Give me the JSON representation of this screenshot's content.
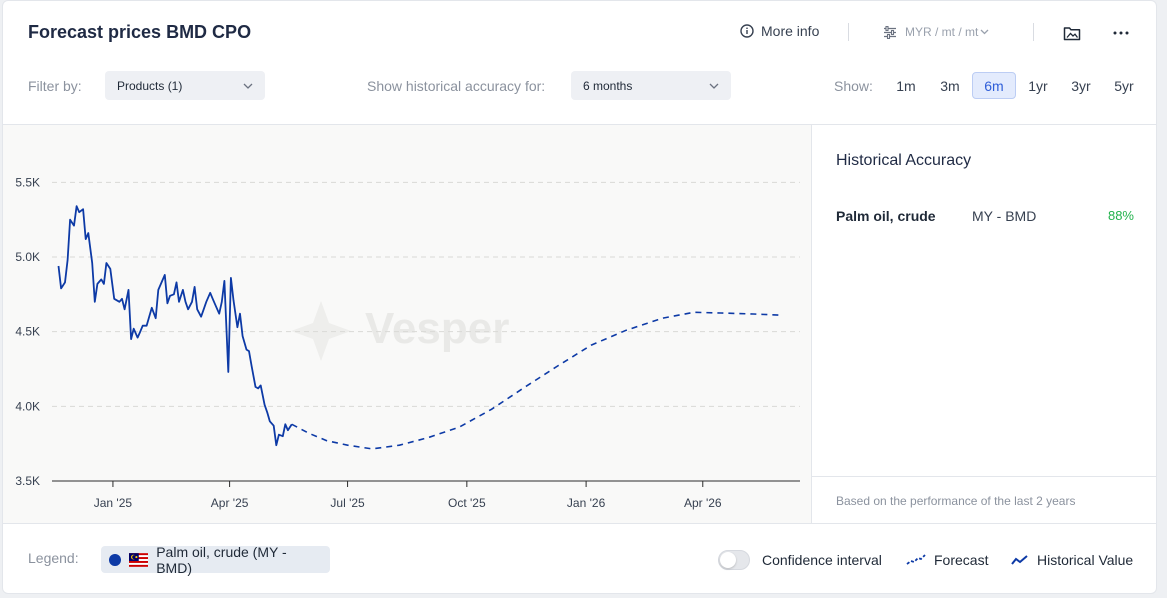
{
  "header": {
    "title": "Forecast prices BMD CPO",
    "more_info": "More info",
    "unit": "MYR / mt / mt"
  },
  "filters": {
    "filter_by_label": "Filter by:",
    "products_value": "Products (1)",
    "accuracy_label": "Show historical accuracy for:",
    "accuracy_value": "6 months",
    "show_label": "Show:",
    "ranges": [
      "1m",
      "3m",
      "6m",
      "1yr",
      "3yr",
      "5yr"
    ],
    "active_range": "6m"
  },
  "accuracy_panel": {
    "title": "Historical Accuracy",
    "rows": [
      {
        "name": "Palm oil, crude",
        "market": "MY - BMD",
        "value": "88%"
      }
    ],
    "note": "Based on the performance of the last 2 years"
  },
  "legend": {
    "label": "Legend:",
    "chip": "Palm oil, crude (MY - BMD)",
    "confidence": "Confidence interval",
    "forecast": "Forecast",
    "historical": "Historical Value"
  },
  "colors": {
    "series": "#0d3aa6",
    "accuracy_good": "#22b24c",
    "active_range": "#2f5ed8"
  },
  "chart_data": {
    "type": "line",
    "watermark": "Vesper",
    "xlabel": "",
    "ylabel": "",
    "ylim": [
      3500,
      5750
    ],
    "y_ticks": [
      3500,
      4000,
      4500,
      5000,
      5500
    ],
    "y_tick_labels": [
      "3.5K",
      "4.0K",
      "4.5K",
      "5.0K",
      "5.5K"
    ],
    "x_ticks": [
      "2025-01-01",
      "2025-04-01",
      "2025-07-01",
      "2025-10-01",
      "2026-01-01",
      "2026-04-01"
    ],
    "x_tick_labels": [
      "Jan '25",
      "Apr '25",
      "Jul '25",
      "Oct '25",
      "Jan '26",
      "Apr '26"
    ],
    "xlim": [
      "2024-11-15",
      "2026-06-15"
    ],
    "grid": true,
    "series": [
      {
        "name": "Historical Value",
        "style": "solid",
        "points": [
          [
            "2024-11-20",
            4940
          ],
          [
            "2024-11-22",
            4790
          ],
          [
            "2024-11-25",
            4830
          ],
          [
            "2024-11-27",
            4980
          ],
          [
            "2024-11-29",
            5250
          ],
          [
            "2024-12-02",
            5210
          ],
          [
            "2024-12-04",
            5340
          ],
          [
            "2024-12-06",
            5300
          ],
          [
            "2024-12-09",
            5320
          ],
          [
            "2024-12-11",
            5120
          ],
          [
            "2024-12-13",
            5160
          ],
          [
            "2024-12-16",
            4960
          ],
          [
            "2024-12-18",
            4700
          ],
          [
            "2024-12-20",
            4820
          ],
          [
            "2024-12-23",
            4850
          ],
          [
            "2024-12-25",
            4820
          ],
          [
            "2024-12-27",
            4960
          ],
          [
            "2024-12-30",
            4920
          ],
          [
            "2025-01-02",
            4720
          ],
          [
            "2025-01-06",
            4700
          ],
          [
            "2025-01-08",
            4720
          ],
          [
            "2025-01-10",
            4650
          ],
          [
            "2025-01-13",
            4780
          ],
          [
            "2025-01-15",
            4450
          ],
          [
            "2025-01-17",
            4520
          ],
          [
            "2025-01-20",
            4460
          ],
          [
            "2025-01-22",
            4500
          ],
          [
            "2025-01-24",
            4540
          ],
          [
            "2025-01-27",
            4540
          ],
          [
            "2025-01-29",
            4600
          ],
          [
            "2025-01-31",
            4660
          ],
          [
            "2025-02-03",
            4590
          ],
          [
            "2025-02-05",
            4780
          ],
          [
            "2025-02-07",
            4820
          ],
          [
            "2025-02-10",
            4880
          ],
          [
            "2025-02-12",
            4690
          ],
          [
            "2025-02-14",
            4740
          ],
          [
            "2025-02-17",
            4750
          ],
          [
            "2025-02-19",
            4830
          ],
          [
            "2025-02-21",
            4700
          ],
          [
            "2025-02-24",
            4780
          ],
          [
            "2025-02-26",
            4700
          ],
          [
            "2025-02-28",
            4650
          ],
          [
            "2025-03-03",
            4700
          ],
          [
            "2025-03-05",
            4800
          ],
          [
            "2025-03-07",
            4650
          ],
          [
            "2025-03-10",
            4600
          ],
          [
            "2025-03-12",
            4650
          ],
          [
            "2025-03-14",
            4700
          ],
          [
            "2025-03-17",
            4760
          ],
          [
            "2025-03-19",
            4720
          ],
          [
            "2025-03-21",
            4680
          ],
          [
            "2025-03-24",
            4620
          ],
          [
            "2025-03-26",
            4700
          ],
          [
            "2025-03-28",
            4840
          ],
          [
            "2025-03-31",
            4230
          ],
          [
            "2025-04-02",
            4860
          ],
          [
            "2025-04-04",
            4710
          ],
          [
            "2025-04-07",
            4530
          ],
          [
            "2025-04-09",
            4620
          ],
          [
            "2025-04-11",
            4470
          ],
          [
            "2025-04-14",
            4380
          ],
          [
            "2025-04-16",
            4370
          ],
          [
            "2025-04-18",
            4270
          ],
          [
            "2025-04-21",
            4130
          ],
          [
            "2025-04-23",
            4120
          ],
          [
            "2025-04-25",
            4140
          ],
          [
            "2025-04-28",
            4010
          ],
          [
            "2025-04-30",
            3960
          ],
          [
            "2025-05-02",
            3900
          ],
          [
            "2025-05-05",
            3870
          ],
          [
            "2025-05-07",
            3740
          ],
          [
            "2025-05-09",
            3810
          ],
          [
            "2025-05-12",
            3800
          ],
          [
            "2025-05-14",
            3880
          ],
          [
            "2025-05-16",
            3840
          ],
          [
            "2025-05-19",
            3880
          ]
        ]
      },
      {
        "name": "Forecast",
        "style": "dashed",
        "points": [
          [
            "2025-05-19",
            3880
          ],
          [
            "2025-06-01",
            3820
          ],
          [
            "2025-06-15",
            3770
          ],
          [
            "2025-07-01",
            3740
          ],
          [
            "2025-07-20",
            3715
          ],
          [
            "2025-08-10",
            3740
          ],
          [
            "2025-09-01",
            3790
          ],
          [
            "2025-09-25",
            3860
          ],
          [
            "2025-10-20",
            3980
          ],
          [
            "2025-11-15",
            4130
          ],
          [
            "2025-12-10",
            4270
          ],
          [
            "2026-01-05",
            4410
          ],
          [
            "2026-02-01",
            4510
          ],
          [
            "2026-03-01",
            4590
          ],
          [
            "2026-03-25",
            4630
          ],
          [
            "2026-04-15",
            4625
          ],
          [
            "2026-05-10",
            4618
          ],
          [
            "2026-06-01",
            4610
          ]
        ]
      }
    ]
  }
}
